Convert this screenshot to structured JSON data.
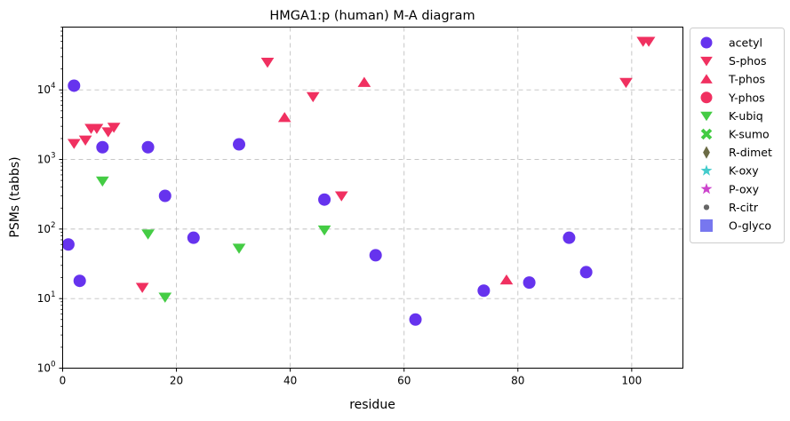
{
  "chart_data": {
    "type": "scatter",
    "title": "HMGA1:p (human) M-A diagram",
    "xlabel": "residue",
    "ylabel": "PSMs (tabbs)",
    "xlim": [
      0,
      109
    ],
    "ylim": [
      1,
      80000
    ],
    "yscale": "log",
    "grid": true,
    "legend_position": "outside-right",
    "x_ticks": [
      0,
      20,
      40,
      60,
      80,
      100
    ],
    "x_tick_labels": [
      "0",
      "20",
      "40",
      "60",
      "80",
      "100"
    ],
    "y_ticks": [
      1,
      10,
      100,
      1000,
      10000
    ],
    "y_tick_labels": [
      [
        "10",
        "0"
      ],
      [
        "10",
        "1"
      ],
      [
        "10",
        "2"
      ],
      [
        "10",
        "3"
      ],
      [
        "10",
        "4"
      ]
    ],
    "series": [
      {
        "name": "acetyl",
        "marker": "circle",
        "color": "#6633ee",
        "points": [
          [
            1,
            60
          ],
          [
            2,
            11500
          ],
          [
            3,
            18
          ],
          [
            7,
            1500
          ],
          [
            15,
            1500
          ],
          [
            18,
            300
          ],
          [
            23,
            75
          ],
          [
            31,
            1650
          ],
          [
            46,
            265
          ],
          [
            55,
            42
          ],
          [
            62,
            5
          ],
          [
            74,
            13
          ],
          [
            82,
            17
          ],
          [
            89,
            75
          ],
          [
            92,
            24
          ]
        ]
      },
      {
        "name": "S-phos",
        "marker": "triangle-down",
        "color": "#f03060",
        "points": [
          [
            2,
            1700
          ],
          [
            4,
            1900
          ],
          [
            5,
            2800
          ],
          [
            6,
            2800
          ],
          [
            8,
            2500
          ],
          [
            9,
            2900
          ],
          [
            14,
            14.5
          ],
          [
            36,
            25000
          ],
          [
            44,
            8000
          ],
          [
            49,
            300
          ],
          [
            99,
            12800
          ],
          [
            102,
            50000
          ],
          [
            103,
            50000
          ]
        ]
      },
      {
        "name": "T-phos",
        "marker": "triangle-up",
        "color": "#f03060",
        "points": [
          [
            39,
            4000
          ],
          [
            53,
            12800
          ],
          [
            78,
            18.5
          ]
        ]
      },
      {
        "name": "Y-phos",
        "marker": "circle",
        "color": "#f03060",
        "points": []
      },
      {
        "name": "K-ubiq",
        "marker": "triangle-down",
        "color": "#44cc44",
        "points": [
          [
            7,
            490
          ],
          [
            15,
            85
          ],
          [
            18,
            10.5
          ],
          [
            31,
            53
          ],
          [
            46,
            97
          ]
        ]
      },
      {
        "name": "K-sumo",
        "marker": "x",
        "color": "#44cc44",
        "points": []
      },
      {
        "name": "R-dimet",
        "marker": "diamond",
        "color": "#6b6b45",
        "points": []
      },
      {
        "name": "K-oxy",
        "marker": "star",
        "color": "#44cccc",
        "points": []
      },
      {
        "name": "P-oxy",
        "marker": "star",
        "color": "#cc44cc",
        "points": []
      },
      {
        "name": "R-citr",
        "marker": "dot",
        "color": "#666666",
        "points": []
      },
      {
        "name": "O-glyco",
        "marker": "square",
        "color": "#7070ee",
        "points": []
      }
    ]
  }
}
